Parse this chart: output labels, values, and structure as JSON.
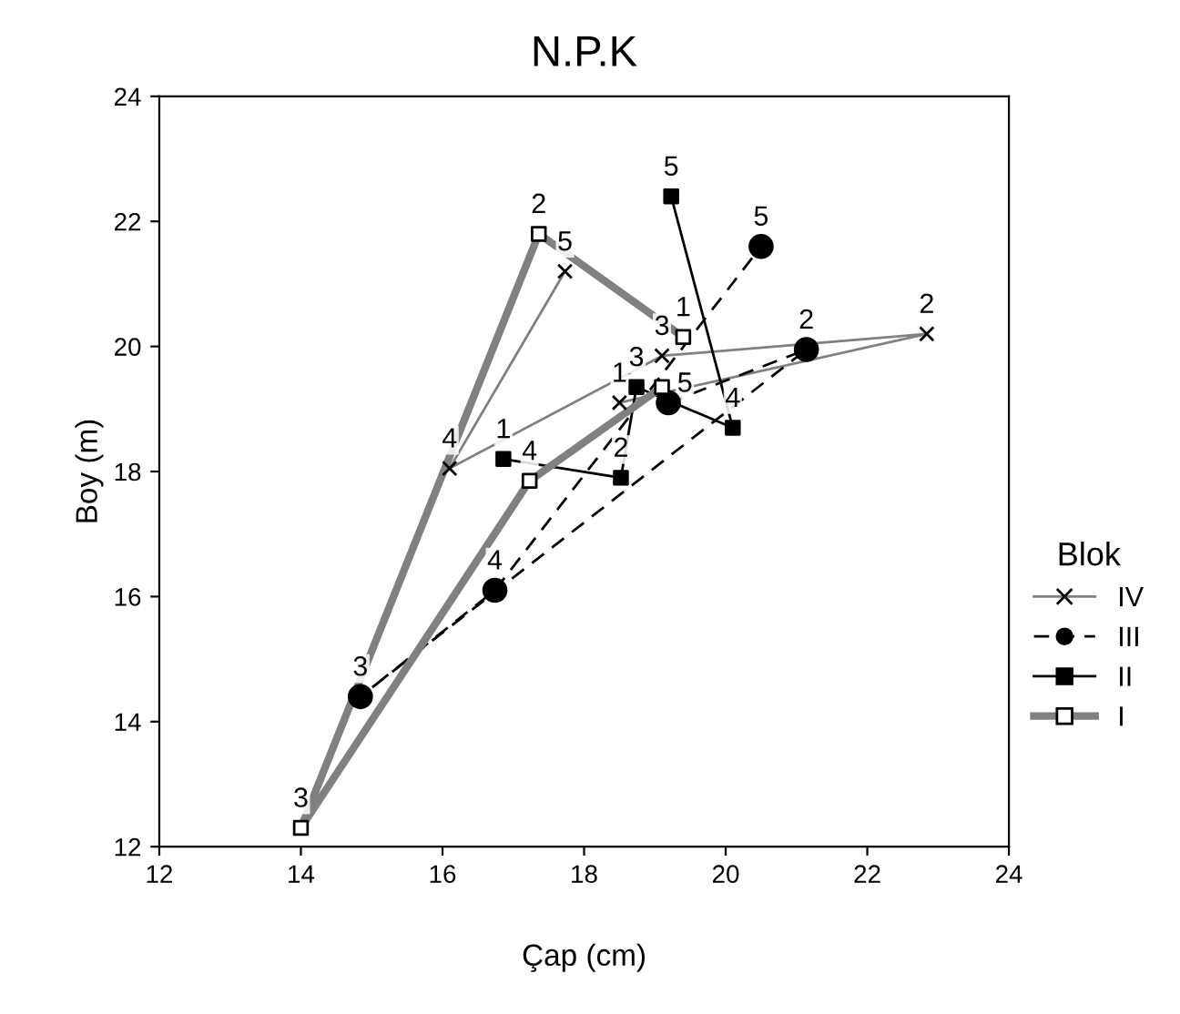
{
  "chart_data": {
    "type": "line",
    "title": "N.P.K",
    "xlabel": "Çap (cm)",
    "ylabel": "Boy (m)",
    "legend_title": "Blok",
    "legend": "right",
    "grid": false,
    "xlim": [
      12,
      24
    ],
    "ylim": [
      12,
      24
    ],
    "xticks": [
      12,
      14,
      16,
      18,
      20,
      22,
      24
    ],
    "yticks": [
      12,
      14,
      16,
      18,
      20,
      22,
      24
    ],
    "series": [
      {
        "name": "IV",
        "color": "#808080",
        "marker": "cross",
        "line_style": "solid",
        "x": [
          18.5,
          22.84,
          19.1,
          16.1,
          17.73
        ],
        "values": [
          19.1,
          20.2,
          19.85,
          18.05,
          21.2
        ]
      },
      {
        "name": "III",
        "color": "#000000",
        "marker": "circle",
        "line_style": "dashed",
        "x": [
          19.19,
          21.14,
          14.84,
          16.74,
          20.5
        ],
        "values": [
          19.1,
          19.95,
          14.4,
          16.1,
          21.6
        ]
      },
      {
        "name": "II",
        "color": "#000000",
        "marker": "square",
        "line_style": "solid",
        "x": [
          16.86,
          18.52,
          18.74,
          20.1,
          19.23
        ],
        "values": [
          18.2,
          17.9,
          19.35,
          18.7,
          22.4
        ]
      },
      {
        "name": "I",
        "color": "#808080",
        "marker": "square",
        "line_style": "solid",
        "x": [
          19.4,
          17.36,
          14.0,
          17.23,
          19.1
        ],
        "values": [
          20.15,
          21.8,
          12.3,
          17.85,
          19.35
        ]
      }
    ],
    "annotations": [
      {
        "text": "1",
        "x": 18.5,
        "y": 19.1
      },
      {
        "text": "2",
        "x": 22.84,
        "y": 20.2
      },
      {
        "text": "3",
        "x": 19.1,
        "y": 19.85
      },
      {
        "text": "4",
        "x": 16.1,
        "y": 18.05
      },
      {
        "text": "5",
        "x": 17.73,
        "y": 21.2
      },
      {
        "text": "2",
        "x": 21.14,
        "y": 19.95
      },
      {
        "text": "3",
        "x": 14.84,
        "y": 14.4
      },
      {
        "text": "4",
        "x": 16.74,
        "y": 16.1
      },
      {
        "text": "5",
        "x": 20.5,
        "y": 21.6
      },
      {
        "text": "1",
        "x": 16.86,
        "y": 18.2
      },
      {
        "text": "2",
        "x": 18.52,
        "y": 17.9
      },
      {
        "text": "3",
        "x": 18.74,
        "y": 19.35
      },
      {
        "text": "4",
        "x": 20.1,
        "y": 18.7
      },
      {
        "text": "5",
        "x": 19.23,
        "y": 22.4
      },
      {
        "text": "1",
        "x": 19.4,
        "y": 20.15
      },
      {
        "text": "2",
        "x": 17.36,
        "y": 21.8
      },
      {
        "text": "3",
        "x": 14.0,
        "y": 12.3
      },
      {
        "text": "4",
        "x": 17.23,
        "y": 17.85
      },
      {
        "text": "5",
        "x": 19.1,
        "y": 19.35
      }
    ]
  }
}
